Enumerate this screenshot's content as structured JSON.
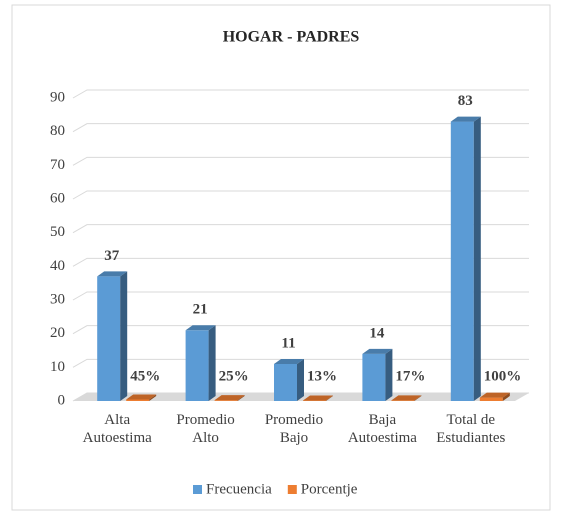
{
  "chart_data": {
    "type": "bar3d",
    "title": "HOGAR - PADRES",
    "categories": [
      "Alta\nAutoestima",
      "Promedio\nAlto",
      "Promedio\nBajo",
      "Baja\nAutoestima",
      "Total de\nEstudiantes"
    ],
    "series": [
      {
        "name": "Frecuencia",
        "color": "#5b9bd5",
        "values": [
          37,
          21,
          11,
          14,
          83
        ]
      },
      {
        "name": "Porcentje",
        "color": "#ed7d31",
        "values": [
          0.45,
          0.25,
          0.13,
          0.17,
          1
        ],
        "value_labels": [
          "45%",
          "25%",
          "13%",
          "17%",
          "100%"
        ]
      }
    ],
    "ylim": [
      0,
      90
    ],
    "yticks": [
      0,
      10,
      20,
      30,
      40,
      50,
      60,
      70,
      80,
      90
    ],
    "grid": true,
    "legend": "bottom"
  }
}
